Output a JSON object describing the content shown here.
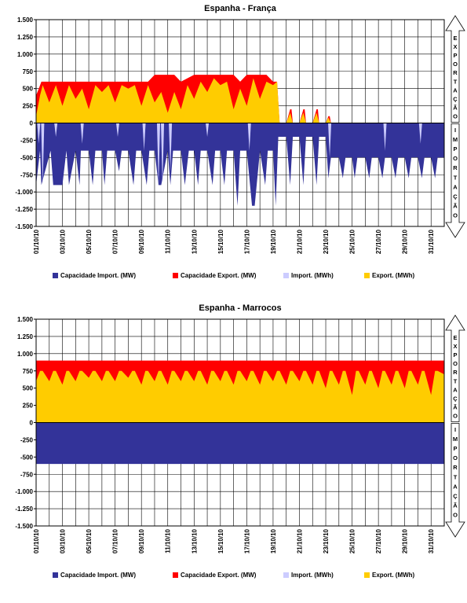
{
  "colors": {
    "import_capacity": "#333399",
    "export_capacity": "#ff0000",
    "import_flow": "#ccccff",
    "export_flow": "#ffcc00",
    "grid": "#000000",
    "plot_bg": "#ffffff"
  },
  "chart_data": [
    {
      "type": "area",
      "title": "Espanha - França",
      "xlabel": "",
      "ylabel": "",
      "ylim": [
        -1500,
        1500
      ],
      "yticks": [
        1500,
        1250,
        1000,
        750,
        500,
        250,
        0,
        -250,
        -500,
        -750,
        -1000,
        -1250,
        -1500
      ],
      "ytick_labels": [
        "1.500",
        "1.250",
        "1.000",
        "750",
        "500",
        "250",
        "0",
        "-250",
        "-500",
        "-750",
        "-1.000",
        "-1.250",
        "-1.500"
      ],
      "x_tick_labels": [
        "01/10/10",
        "03/10/10",
        "05/10/10",
        "07/10/10",
        "09/10/10",
        "11/10/10",
        "13/10/10",
        "15/10/10",
        "17/10/10",
        "19/10/10",
        "21/10/10",
        "23/10/10",
        "25/10/10",
        "27/10/10",
        "29/10/10",
        "31/10/10"
      ],
      "x_tick_days": [
        1,
        3,
        5,
        7,
        9,
        11,
        13,
        15,
        17,
        19,
        21,
        23,
        25,
        27,
        29,
        31
      ],
      "xlim_days": [
        1,
        32
      ],
      "grid": true,
      "legend_position": "bottom",
      "side_arrow": {
        "top_label": "EXPORTAÇÃO",
        "bottom_label": "IMPORTAÇÃO"
      },
      "series": [
        {
          "name": "Capacidade Import. (MW)",
          "color_key": "import_capacity",
          "x_days": [
            1,
            1.3,
            1.4,
            2.1,
            2.3,
            3.0,
            3.3,
            3.5,
            4.0,
            4.3,
            4.4,
            5.0,
            5.3,
            5.5,
            6.0,
            6.2,
            6.4,
            7.0,
            7.3,
            7.5,
            8.0,
            8.4,
            8.6,
            9.0,
            9.4,
            9.6,
            10.0,
            10.3,
            10.5,
            11.0,
            11.2,
            11.4,
            12.0,
            12.3,
            12.6,
            13.0,
            13.3,
            13.5,
            14.0,
            14.4,
            14.6,
            15.0,
            15.3,
            15.5,
            16.0,
            16.3,
            16.5,
            17.0,
            17.4,
            17.6,
            18.0,
            18.4,
            18.6,
            19.0,
            19.2,
            19.4,
            20.0,
            20.3,
            20.5,
            21.0,
            21.3,
            21.5,
            22.0,
            22.3,
            22.5,
            23.0,
            23.2,
            23.4,
            24.0,
            24.3,
            24.5,
            25.0,
            25.2,
            25.4,
            26.0,
            26.3,
            26.5,
            27.0,
            27.3,
            27.5,
            28.0,
            28.3,
            28.5,
            29.0,
            29.3,
            29.5,
            30.0,
            30.3,
            30.5,
            31.0,
            31.3,
            31.5,
            32
          ],
          "values": [
            -900,
            -400,
            -900,
            -400,
            -900,
            -900,
            -400,
            -900,
            -400,
            -900,
            -400,
            -400,
            -900,
            -400,
            -400,
            -900,
            -400,
            -400,
            -700,
            -400,
            -400,
            -900,
            -400,
            -400,
            -900,
            -400,
            -400,
            -900,
            -900,
            -400,
            -900,
            -400,
            -400,
            -900,
            -400,
            -400,
            -900,
            -400,
            -400,
            -900,
            -400,
            -400,
            -900,
            -400,
            -400,
            -1200,
            -400,
            -400,
            -1200,
            -1200,
            -400,
            -900,
            -400,
            -400,
            -1200,
            -200,
            -200,
            -900,
            -200,
            -200,
            -900,
            -200,
            -200,
            -900,
            -200,
            -200,
            -800,
            -500,
            -500,
            -800,
            -500,
            -500,
            -800,
            -500,
            -500,
            -800,
            -500,
            -500,
            -800,
            -500,
            -500,
            -800,
            -500,
            -500,
            -800,
            -500,
            -500,
            -800,
            -500,
            -500,
            -800,
            -500,
            -500
          ]
        },
        {
          "name": "Capacidade Export. (MW)",
          "color_key": "export_capacity",
          "x_days": [
            1,
            1.2,
            1.4,
            2.0,
            3.0,
            4.0,
            5.0,
            6.0,
            7.0,
            8.0,
            9.0,
            9.5,
            10.0,
            10.5,
            11.0,
            11.5,
            12.0,
            13.0,
            14.0,
            15.0,
            16.0,
            16.5,
            17.0,
            17.5,
            18.0,
            18.5,
            19.0,
            19.3,
            19.5,
            20.0,
            20.3,
            20.4,
            20.5,
            21.0,
            21.3,
            21.4,
            21.5,
            22.0,
            22.3,
            22.4,
            22.5,
            23.0,
            23.2,
            23.3,
            23.4,
            32
          ],
          "values": [
            400,
            500,
            600,
            600,
            600,
            600,
            600,
            600,
            600,
            600,
            600,
            600,
            700,
            700,
            700,
            700,
            600,
            700,
            700,
            700,
            700,
            600,
            700,
            700,
            700,
            700,
            600,
            600,
            0,
            0,
            200,
            200,
            0,
            0,
            200,
            200,
            0,
            0,
            200,
            200,
            0,
            0,
            100,
            100,
            0,
            0
          ]
        },
        {
          "name": "Import. (MWh)",
          "color_key": "import_flow",
          "x_days": [
            1.2,
            1.5,
            2.5,
            4.5,
            7.2,
            9.2,
            10.3,
            10.6,
            11.2,
            14.0,
            17.2,
            23.3,
            27.5,
            30.2
          ],
          "values": [
            -300,
            -900,
            -200,
            -300,
            -200,
            -400,
            -900,
            -900,
            -700,
            -200,
            -400,
            -500,
            -400,
            -300
          ]
        },
        {
          "name": "Export. (MWh)",
          "color_key": "export_flow",
          "x_days": [
            1,
            1.3,
            1.5,
            2.0,
            2.5,
            3.0,
            3.5,
            4.0,
            4.5,
            5.0,
            5.5,
            6.0,
            6.5,
            7.0,
            7.5,
            8.0,
            8.5,
            9.0,
            9.5,
            10.0,
            10.5,
            11.0,
            11.5,
            12.0,
            12.5,
            13.0,
            13.5,
            14.0,
            14.5,
            15.0,
            15.5,
            16.0,
            16.5,
            17.0,
            17.5,
            18.0,
            18.5,
            19.0,
            19.3,
            19.5,
            20.0,
            20.3,
            20.5,
            21.0,
            21.3,
            21.5,
            22.0,
            22.3,
            22.5,
            23.0,
            23.2,
            23.4,
            32
          ],
          "values": [
            100,
            400,
            550,
            300,
            550,
            250,
            550,
            350,
            500,
            200,
            550,
            450,
            550,
            300,
            550,
            500,
            550,
            250,
            550,
            300,
            450,
            150,
            450,
            200,
            550,
            350,
            600,
            450,
            650,
            550,
            600,
            200,
            500,
            250,
            650,
            350,
            600,
            550,
            600,
            0,
            0,
            150,
            0,
            0,
            150,
            0,
            0,
            150,
            0,
            0,
            80,
            0,
            0
          ]
        }
      ]
    },
    {
      "type": "area",
      "title": "Espanha - Marrocos",
      "xlabel": "",
      "ylabel": "",
      "ylim": [
        -1500,
        1500
      ],
      "yticks": [
        1500,
        1250,
        1000,
        750,
        500,
        250,
        0,
        -250,
        -500,
        -750,
        -1000,
        -1250,
        -1500
      ],
      "ytick_labels": [
        "1.500",
        "1.250",
        "1.000",
        "750",
        "500",
        "250",
        "0",
        "-250",
        "-500",
        "-750",
        "-1.000",
        "-1.250",
        "-1.500"
      ],
      "x_tick_labels": [
        "01/10/10",
        "03/10/10",
        "05/10/10",
        "07/10/10",
        "09/10/10",
        "11/10/10",
        "13/10/10",
        "15/10/10",
        "17/10/10",
        "19/10/10",
        "21/10/10",
        "23/10/10",
        "25/10/10",
        "27/10/10",
        "29/10/10",
        "31/10/10"
      ],
      "x_tick_days": [
        1,
        3,
        5,
        7,
        9,
        11,
        13,
        15,
        17,
        19,
        21,
        23,
        25,
        27,
        29,
        31
      ],
      "xlim_days": [
        1,
        32
      ],
      "grid": true,
      "legend_position": "bottom",
      "side_arrow": {
        "top_label": "EXPORTAÇÃO",
        "bottom_label": "IMPORTAÇÃO"
      },
      "series": [
        {
          "name": "Capacidade Import. (MW)",
          "color_key": "import_capacity",
          "x_days": [
            1,
            32
          ],
          "values": [
            -600,
            -600
          ]
        },
        {
          "name": "Capacidade Export. (MW)",
          "color_key": "export_capacity",
          "x_days": [
            1,
            32
          ],
          "values": [
            900,
            900
          ]
        },
        {
          "name": "Import. (MWh)",
          "color_key": "import_flow",
          "x_days": [],
          "values": []
        },
        {
          "name": "Export. (MWh)",
          "color_key": "export_flow",
          "x_days": [
            1,
            1.3,
            1.5,
            2.0,
            2.3,
            2.5,
            3.0,
            3.3,
            3.5,
            4.0,
            4.3,
            4.5,
            5.0,
            5.3,
            5.5,
            6.0,
            6.3,
            6.5,
            7.0,
            7.3,
            7.5,
            8.0,
            8.3,
            8.5,
            9.0,
            9.3,
            9.5,
            10.0,
            10.3,
            10.5,
            11.0,
            11.3,
            11.5,
            12.0,
            12.3,
            12.5,
            13.0,
            13.3,
            13.5,
            14.0,
            14.3,
            14.5,
            15.0,
            15.3,
            15.5,
            16.0,
            16.3,
            16.5,
            17.0,
            17.3,
            17.5,
            18.0,
            18.3,
            18.5,
            19.0,
            19.3,
            19.5,
            20.0,
            20.3,
            20.5,
            21.0,
            21.3,
            21.5,
            22.0,
            22.3,
            22.5,
            23.0,
            23.3,
            23.5,
            24.0,
            24.3,
            24.5,
            25.0,
            25.3,
            25.5,
            26.0,
            26.3,
            26.5,
            27.0,
            27.3,
            27.5,
            28.0,
            28.3,
            28.5,
            29.0,
            29.3,
            29.5,
            30.0,
            30.3,
            30.5,
            31.0,
            31.3,
            31.5,
            32
          ],
          "values": [
            600,
            750,
            750,
            600,
            750,
            750,
            550,
            750,
            750,
            600,
            750,
            750,
            650,
            750,
            750,
            600,
            750,
            750,
            600,
            750,
            750,
            650,
            750,
            750,
            550,
            750,
            750,
            600,
            750,
            750,
            550,
            750,
            750,
            600,
            750,
            750,
            600,
            750,
            750,
            550,
            750,
            750,
            600,
            750,
            750,
            550,
            750,
            750,
            600,
            750,
            750,
            550,
            750,
            750,
            600,
            750,
            750,
            550,
            750,
            750,
            600,
            750,
            750,
            550,
            750,
            750,
            500,
            750,
            750,
            550,
            750,
            750,
            400,
            750,
            750,
            550,
            750,
            750,
            500,
            750,
            750,
            550,
            750,
            750,
            500,
            750,
            750,
            550,
            750,
            750,
            400,
            750,
            750,
            700
          ]
        }
      ]
    }
  ]
}
